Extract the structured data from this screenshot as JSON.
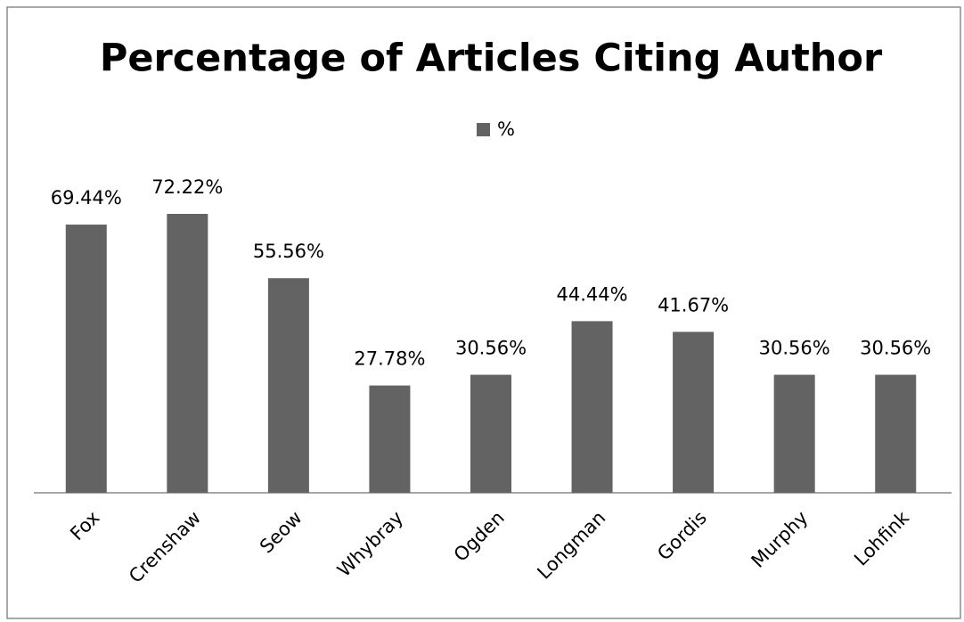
{
  "chart_data": {
    "type": "bar",
    "title": "Percentage of Articles Citing Author",
    "categories": [
      "Fox",
      "Crenshaw",
      "Seow",
      "Whybray",
      "Ogden",
      "Longman",
      "Gordis",
      "Murphy",
      "Lohfink"
    ],
    "series": [
      {
        "name": "%",
        "color": "#636363",
        "values": [
          69.44,
          72.22,
          55.56,
          27.78,
          30.56,
          44.44,
          41.67,
          30.56,
          30.56
        ],
        "value_labels": [
          "69.44%",
          "72.22%",
          "55.56%",
          "27.78%",
          "30.56%",
          "44.44%",
          "41.67%",
          "30.56%",
          "30.56%"
        ]
      }
    ],
    "legend": "top"
  }
}
